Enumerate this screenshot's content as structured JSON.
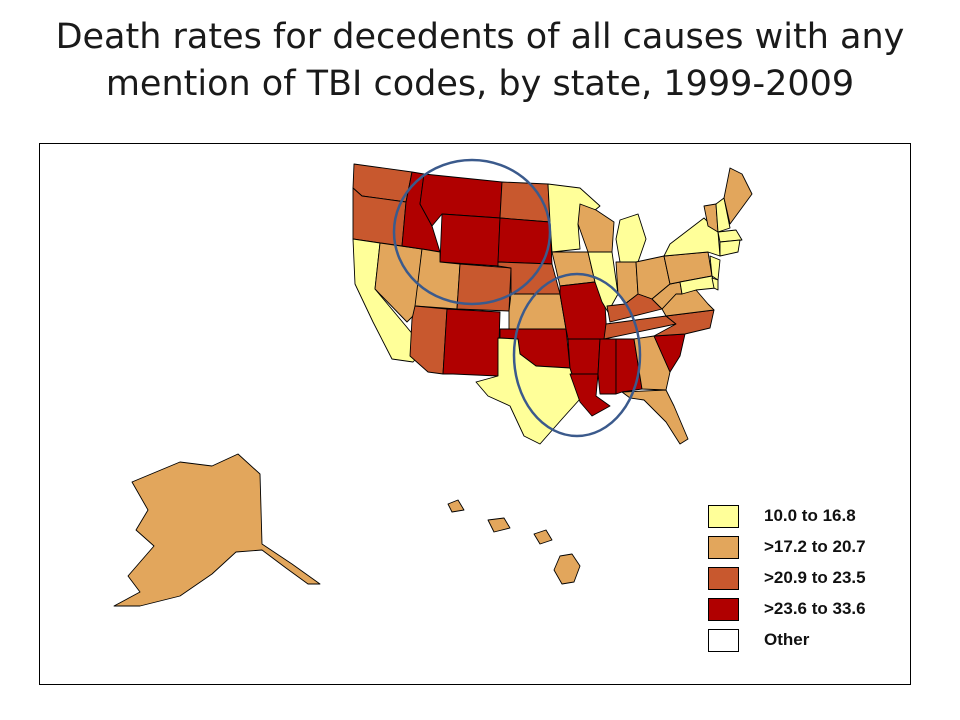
{
  "title_line1": "Death rates for decedents of all causes with any",
  "title_line2": "mention of TBI codes, by state, 1999-2009",
  "colors": {
    "c1": "#ffff99",
    "c2": "#e2a65c",
    "c3": "#c8582e",
    "c4": "#b00000",
    "other": "#ffffff",
    "outline": "#000000",
    "highlight_circle": "#3b5a8c"
  },
  "legend": [
    {
      "label": "10.0 to 16.8",
      "color": "#ffff99"
    },
    {
      "label": ">17.2 to 20.7",
      "color": "#e2a65c"
    },
    {
      "label": ">20.9 to 23.5",
      "color": "#c8582e"
    },
    {
      "label": ">23.6 to 33.6",
      "color": "#b00000"
    },
    {
      "label": "Other",
      "color": "#ffffff"
    }
  ],
  "highlight_circles": [
    {
      "region": "northern-plains"
    },
    {
      "region": "south-central"
    }
  ]
}
